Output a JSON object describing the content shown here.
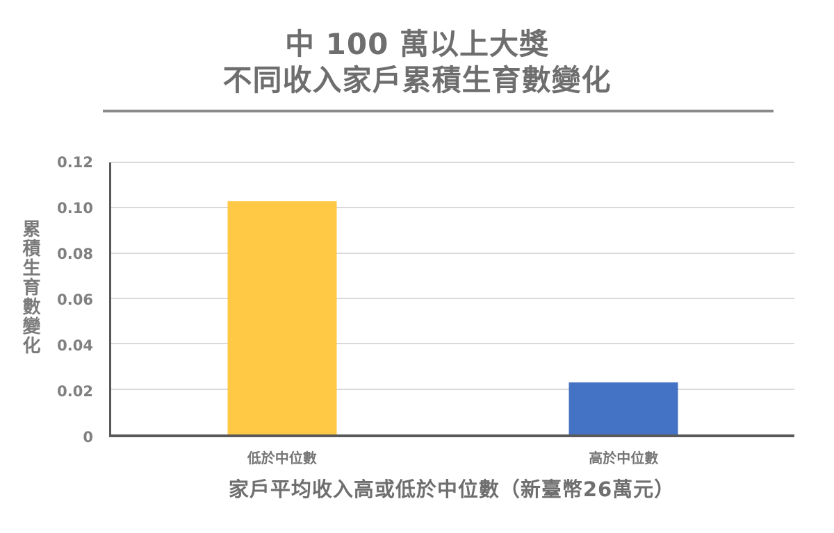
{
  "header": {
    "title_line1": "中 100 萬以上大獎",
    "title_line2": "不同收入家戶累積生育數變化"
  },
  "chart_data": {
    "type": "bar",
    "title": "中 100 萬以上大獎 不同收入家戶累積生育數變化",
    "categories": [
      "低於中位數",
      "高於中位數"
    ],
    "values": [
      0.103,
      0.023
    ],
    "bar_colors": [
      "#FFC845",
      "#4472C4"
    ],
    "ylabel": "累積生育數變化",
    "xlabel": "家戶平均收入高或低於中位數（新臺幣26萬元）",
    "ylim": [
      0,
      0.12
    ],
    "yticks": [
      0,
      0.02,
      0.04,
      0.06,
      0.08,
      0.1,
      0.12
    ],
    "ytick_labels": [
      "0",
      "0.02",
      "0.04",
      "0.06",
      "0.08",
      "0.10",
      "0.12"
    ],
    "grid": true,
    "legend_position": "none"
  },
  "style": {
    "accent_yellow": "#FFC845",
    "accent_blue": "#4472C4",
    "title_gray": "#6E6E6E",
    "tick_gray": "#808080",
    "axis_gray": "#595959",
    "gridline_gray": "#D9D9D9",
    "rule_gray": "#8A8A8A"
  }
}
